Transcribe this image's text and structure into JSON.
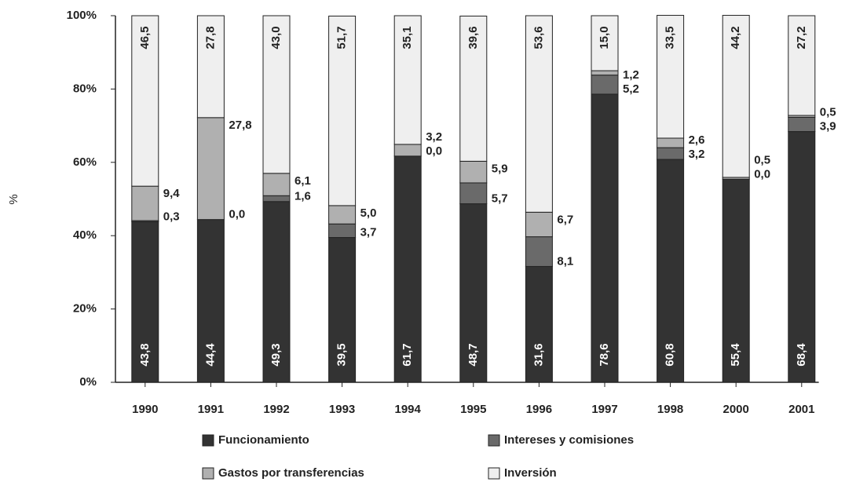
{
  "chart_data": {
    "type": "stacked_bar",
    "y_label": "%",
    "categories": [
      "1990",
      "1991",
      "1992",
      "1993",
      "1994",
      "1995",
      "1996",
      "1997",
      "1998",
      "2000",
      "2001"
    ],
    "series": [
      {
        "name": "Funcionamiento",
        "color": "#333333",
        "values": [
          43.8,
          44.4,
          49.3,
          39.5,
          61.7,
          48.7,
          31.6,
          78.6,
          60.8,
          55.4,
          68.4
        ],
        "value_labels": [
          "43,8",
          "44,4",
          "49,3",
          "39,5",
          "61,7",
          "48,7",
          "31,6",
          "78,6",
          "60,8",
          "55,4",
          "68,4"
        ]
      },
      {
        "name": "Intereses y comisiones",
        "color": "#6a6a6a",
        "values": [
          0.3,
          0.0,
          1.6,
          3.7,
          0.0,
          5.7,
          8.1,
          5.2,
          3.2,
          0.0,
          3.9
        ],
        "value_labels": [
          "0,3",
          "0,0",
          "1,6",
          "3,7",
          "0,0",
          "5,7",
          "8,1",
          "5,2",
          "3,2",
          "0,0",
          "3,9"
        ]
      },
      {
        "name": "Gastos por transferencias",
        "color": "#b0b0b0",
        "values": [
          9.4,
          27.8,
          6.1,
          5.0,
          3.2,
          5.9,
          6.7,
          1.2,
          2.6,
          0.5,
          0.5
        ],
        "value_labels": [
          "9,4",
          "27,8",
          "6,1",
          "5,0",
          "3,2",
          "5,9",
          "6,7",
          "1,2",
          "2,6",
          "0,5",
          "0,5"
        ]
      },
      {
        "name": "Inversión",
        "color": "#efefef",
        "values": [
          46.5,
          27.8,
          43.0,
          51.7,
          35.1,
          39.6,
          53.6,
          15.0,
          33.5,
          44.2,
          27.2
        ],
        "value_labels": [
          "46,5",
          "27,8",
          "43,0",
          "51,7",
          "35,1",
          "39,6",
          "53,6",
          "15,0",
          "33,5",
          "44,2",
          "27,2"
        ]
      }
    ],
    "ylim": [
      0,
      100
    ],
    "yticks": [
      {
        "value": 0,
        "label": "0%"
      },
      {
        "value": 20,
        "label": "20%"
      },
      {
        "value": 40,
        "label": "40%"
      },
      {
        "value": 60,
        "label": "60%"
      },
      {
        "value": 80,
        "label": "80%"
      },
      {
        "value": 100,
        "label": "100%"
      }
    ]
  }
}
